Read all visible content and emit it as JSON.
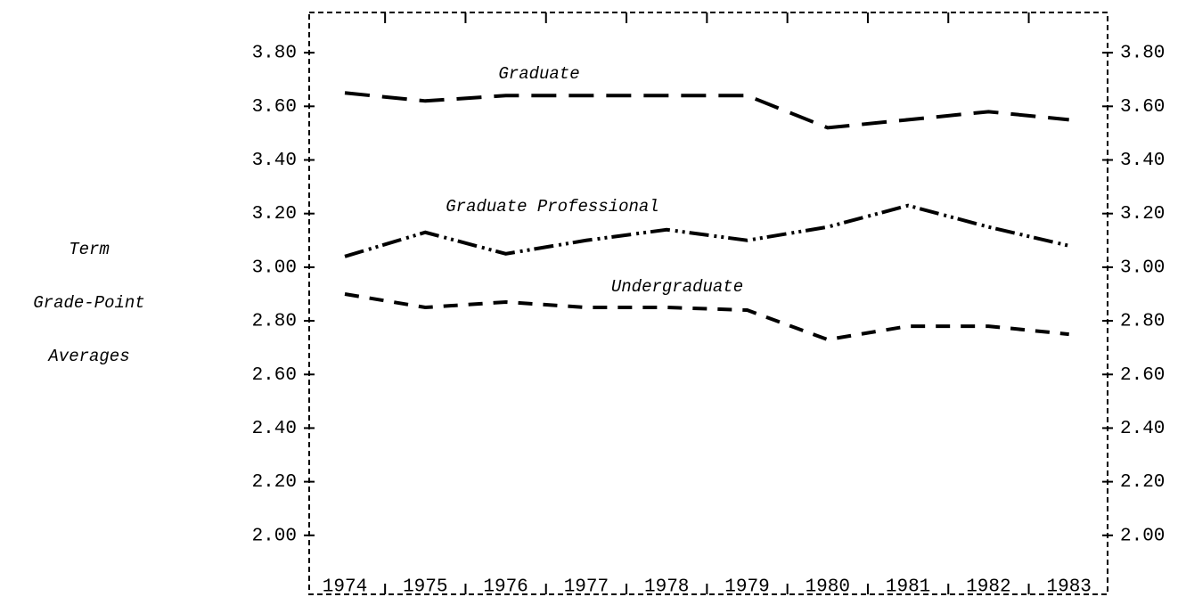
{
  "chart_data": {
    "type": "line",
    "ylabel": [
      "Term",
      "Grade-Point",
      "Averages"
    ],
    "categories": [
      "1974",
      "1975",
      "1976",
      "1977",
      "1978",
      "1979",
      "1980",
      "1981",
      "1982",
      "1983"
    ],
    "series": [
      {
        "name": "Graduate",
        "color": "#000000",
        "dash": "28 14",
        "values": [
          3.65,
          3.62,
          3.64,
          3.64,
          3.64,
          3.64,
          3.52,
          3.55,
          3.58,
          3.55
        ]
      },
      {
        "name": "Graduate Professional",
        "color": "#000000",
        "dash": "22 6 3 5 3 5",
        "values": [
          3.04,
          3.13,
          3.05,
          3.1,
          3.14,
          3.1,
          3.15,
          3.23,
          3.15,
          3.08
        ]
      },
      {
        "name": "Undergraduate",
        "color": "#000000",
        "dash": "16 12",
        "values": [
          2.9,
          2.85,
          2.87,
          2.85,
          2.85,
          2.84,
          2.73,
          2.78,
          2.78,
          2.75
        ]
      }
    ],
    "ylim": [
      1.78,
      3.95
    ],
    "yticks": [
      {
        "value": 2.0,
        "label": "2.00"
      },
      {
        "value": 2.2,
        "label": "2.20"
      },
      {
        "value": 2.4,
        "label": "2.40"
      },
      {
        "value": 2.6,
        "label": "2.60"
      },
      {
        "value": 2.8,
        "label": "2.80"
      },
      {
        "value": 3.0,
        "label": "3.00"
      },
      {
        "value": 3.2,
        "label": "3.20"
      },
      {
        "value": 3.4,
        "label": "3.40"
      },
      {
        "value": 3.6,
        "label": "3.60"
      },
      {
        "value": 3.8,
        "label": "3.80"
      }
    ]
  }
}
